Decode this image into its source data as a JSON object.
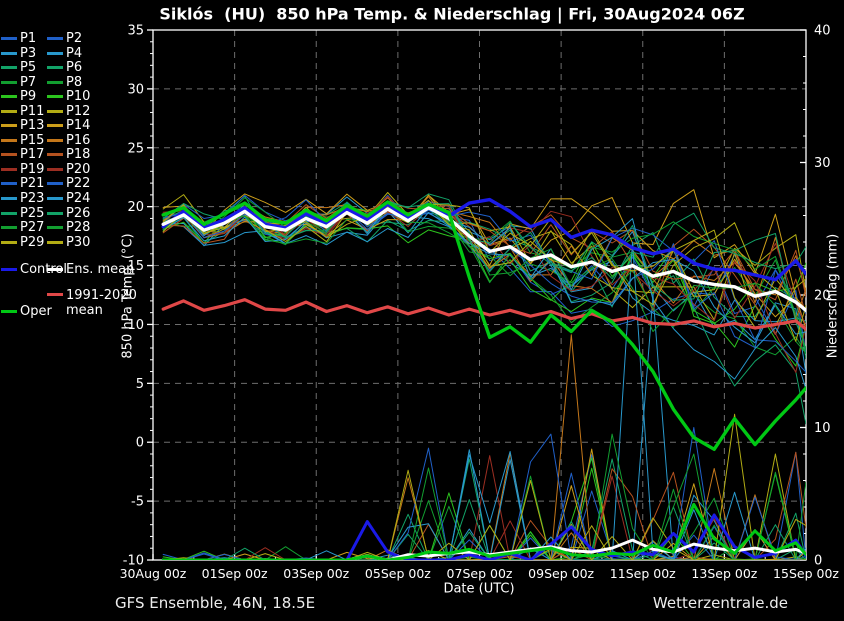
{
  "title": "Siklós  (HU)  850 hPa Temp. & Niederschlag | Fri, 30Aug2024 06Z",
  "footer": {
    "left": "GFS Ensemble, 46N, 18.5E",
    "right": "Wetterzentrale.de"
  },
  "colors": {
    "background": "#000000",
    "frame": "#ffffff",
    "grid": "#6e6e6e",
    "text": "#ffffff",
    "control": "#1a1ae8",
    "ens_mean": "#ffffff",
    "oper": "#00c814",
    "climate_mean": "#e04848"
  },
  "legend": {
    "members": [
      {
        "label": "P1",
        "color": "#2060c8"
      },
      {
        "label": "P2",
        "color": "#2060c8"
      },
      {
        "label": "P3",
        "color": "#2898cc"
      },
      {
        "label": "P4",
        "color": "#2898cc"
      },
      {
        "label": "P5",
        "color": "#12a368"
      },
      {
        "label": "P6",
        "color": "#12a368"
      },
      {
        "label": "P7",
        "color": "#129e30"
      },
      {
        "label": "P8",
        "color": "#129e30"
      },
      {
        "label": "P9",
        "color": "#2cc41e"
      },
      {
        "label": "P10",
        "color": "#2cc41e"
      },
      {
        "label": "P11",
        "color": "#b2ac14"
      },
      {
        "label": "P12",
        "color": "#b2ac14"
      },
      {
        "label": "P13",
        "color": "#cc9e1a"
      },
      {
        "label": "P14",
        "color": "#cc9e1a"
      },
      {
        "label": "P15",
        "color": "#c4771a"
      },
      {
        "label": "P16",
        "color": "#c4771a"
      },
      {
        "label": "P17",
        "color": "#b5521f"
      },
      {
        "label": "P18",
        "color": "#b5521f"
      },
      {
        "label": "P19",
        "color": "#9c2e22"
      },
      {
        "label": "P20",
        "color": "#9c2e22"
      },
      {
        "label": "P21",
        "color": "#2060c8"
      },
      {
        "label": "P22",
        "color": "#2060c8"
      },
      {
        "label": "P23",
        "color": "#2898cc"
      },
      {
        "label": "P24",
        "color": "#2898cc"
      },
      {
        "label": "P25",
        "color": "#12a368"
      },
      {
        "label": "P26",
        "color": "#12a368"
      },
      {
        "label": "P27",
        "color": "#129e30"
      },
      {
        "label": "P28",
        "color": "#129e30"
      },
      {
        "label": "P29",
        "color": "#b2ac14"
      },
      {
        "label": "P30",
        "color": "#b2ac14"
      }
    ],
    "extras": [
      {
        "label": "Control",
        "color": "#1a1ae8"
      },
      {
        "label": "Ens. mean",
        "color": "#ffffff"
      },
      {
        "label": "1991-2020 mean",
        "color": "#e04848"
      },
      {
        "label": "Oper",
        "color": "#00c814"
      }
    ]
  },
  "chart_data": {
    "type": "line",
    "title": "Siklós  (HU)  850 hPa Temp. & Niederschlag | Fri, 30Aug2024 06Z",
    "xlabel": "Date (UTC)",
    "ylabel_left": "850 hPa Temp. (°C)",
    "ylabel_right": "Niederschlag (mm)",
    "x_tick_labels": [
      "30Aug 00z",
      "01Sep 00z",
      "03Sep 00z",
      "05Sep 00z",
      "07Sep 00z",
      "09Sep 00z",
      "11Sep 00z",
      "13Sep 00z",
      "15Sep 00z"
    ],
    "x_range_hours": [
      0,
      384
    ],
    "x_major_step_hours": 48,
    "x_minor_step_hours": 24,
    "ylim_left": [
      -10,
      35
    ],
    "yticks_left": [
      35,
      30,
      25,
      20,
      15,
      10,
      5,
      0,
      -5,
      -10
    ],
    "y_minor_step_left": 1,
    "ylim_right": [
      0,
      40
    ],
    "yticks_right": [
      40,
      30,
      20,
      10,
      0
    ],
    "y_minor_step_right": 2,
    "grid": {
      "style": "dashed",
      "color": "#6e6e6e",
      "x_every_hours": 48,
      "y_every_degC": 5
    },
    "hours": [
      6,
      18,
      30,
      42,
      54,
      66,
      78,
      90,
      102,
      114,
      126,
      138,
      150,
      162,
      174,
      186,
      198,
      210,
      222,
      234,
      246,
      258,
      270,
      282,
      294,
      306,
      318,
      330,
      342,
      354,
      366,
      378,
      384
    ],
    "series": [
      {
        "name": "Ens. mean",
        "color": "#ffffff",
        "width": 3.4,
        "temp": [
          18.5,
          19.3,
          18.0,
          18.6,
          19.6,
          18.3,
          18.0,
          19.0,
          18.3,
          19.5,
          18.6,
          19.8,
          18.8,
          19.9,
          19.0,
          17.5,
          16.2,
          16.6,
          15.5,
          15.9,
          14.9,
          15.3,
          14.5,
          15.0,
          14.1,
          14.5,
          13.7,
          13.4,
          13.2,
          12.4,
          12.8,
          11.9,
          11.2
        ],
        "precip": [
          0,
          0,
          0,
          0,
          0,
          0,
          0,
          0,
          0,
          0,
          0.3,
          0,
          0.4,
          0.3,
          0.5,
          0.6,
          0.4,
          0.6,
          0.8,
          1.0,
          0.7,
          0.6,
          0.9,
          1.5,
          0.8,
          0.6,
          1.2,
          0.9,
          0.7,
          0.9,
          0.6,
          0.8,
          0.5
        ]
      },
      {
        "name": "Control",
        "color": "#1a1ae8",
        "width": 3.4,
        "temp": [
          18.3,
          19.6,
          18.2,
          18.9,
          19.9,
          18.5,
          18.2,
          19.4,
          18.5,
          19.8,
          18.9,
          20.2,
          19.0,
          20.1,
          19.2,
          20.3,
          20.6,
          19.6,
          18.3,
          18.9,
          17.4,
          18.0,
          17.6,
          16.5,
          16.0,
          16.4,
          15.2,
          14.7,
          14.6,
          14.2,
          13.8,
          15.4,
          14.3
        ],
        "precip": [
          0,
          0,
          0,
          0,
          0,
          0,
          0,
          0,
          0,
          0,
          2.9,
          0.6,
          0,
          0,
          0,
          0.4,
          0,
          0.5,
          0,
          1.2,
          2.5,
          0.8,
          0.3,
          0.6,
          0.4,
          2.0,
          0.6,
          3.4,
          1.0,
          0.2,
          0.5,
          1.5,
          0.3
        ]
      },
      {
        "name": "Oper",
        "color": "#00c814",
        "width": 3.4,
        "temp": [
          19.3,
          19.9,
          18.5,
          19.4,
          20.3,
          18.9,
          18.6,
          19.7,
          18.8,
          20.1,
          19.2,
          20.4,
          19.3,
          20.2,
          19.5,
          14.0,
          8.9,
          9.8,
          8.5,
          10.8,
          9.4,
          11.2,
          10.2,
          8.3,
          6.0,
          2.8,
          0.4,
          -0.6,
          2.0,
          -0.2,
          1.8,
          3.6,
          4.6
        ],
        "precip": [
          0,
          0,
          0,
          0,
          0,
          0,
          0,
          0,
          0,
          0,
          0.3,
          0,
          0.2,
          0.6,
          0.5,
          0.8,
          0.3,
          0.5,
          0.7,
          0.9,
          0.4,
          0.3,
          0.5,
          0.4,
          1.1,
          0.6,
          4.2,
          1.6,
          0.5,
          2.2,
          0.7,
          1.3,
          0.4
        ]
      },
      {
        "name": "1991-2020 mean",
        "color": "#e04848",
        "width": 3.2,
        "temp": [
          11.3,
          12.0,
          11.2,
          11.6,
          12.1,
          11.3,
          11.2,
          11.9,
          11.1,
          11.6,
          11.0,
          11.5,
          10.9,
          11.4,
          10.8,
          11.3,
          10.8,
          11.2,
          10.7,
          11.1,
          10.5,
          10.9,
          10.3,
          10.6,
          10.1,
          10.0,
          10.3,
          9.8,
          10.1,
          9.7,
          10.0,
          10.3,
          9.6
        ]
      }
    ],
    "ensemble_members": {
      "names": [
        "P1",
        "P2",
        "P3",
        "P4",
        "P5",
        "P6",
        "P7",
        "P8",
        "P9",
        "P10",
        "P11",
        "P12",
        "P13",
        "P14",
        "P15",
        "P16",
        "P17",
        "P18",
        "P19",
        "P20",
        "P21",
        "P22",
        "P23",
        "P24",
        "P25",
        "P26",
        "P27",
        "P28",
        "P29",
        "P30"
      ],
      "colors": [
        "#2060c8",
        "#2060c8",
        "#2898cc",
        "#2898cc",
        "#12a368",
        "#12a368",
        "#129e30",
        "#129e30",
        "#2cc41e",
        "#2cc41e",
        "#b2ac14",
        "#b2ac14",
        "#cc9e1a",
        "#cc9e1a",
        "#c4771a",
        "#c4771a",
        "#b5521f",
        "#b5521f",
        "#9c2e22",
        "#9c2e22",
        "#2060c8",
        "#2060c8",
        "#2898cc",
        "#2898cc",
        "#12a368",
        "#12a368",
        "#129e30",
        "#129e30",
        "#b2ac14",
        "#b2ac14"
      ],
      "plume_center_temp": [
        18.5,
        19.3,
        18.0,
        18.6,
        19.6,
        18.3,
        18.0,
        19.0,
        18.3,
        19.5,
        18.6,
        19.8,
        18.8,
        19.9,
        19.0,
        17.5,
        16.2,
        16.6,
        15.5,
        15.9,
        14.9,
        15.3,
        14.5,
        15.0,
        14.1,
        14.5,
        13.7,
        13.4,
        13.2,
        12.4,
        12.8,
        11.9,
        11.2
      ],
      "plume_spread_temp": [
        1.3,
        1.3,
        1.3,
        1.3,
        1.3,
        1.3,
        1.3,
        1.3,
        1.3,
        1.3,
        1.3,
        1.3,
        1.3,
        1.3,
        1.4,
        2.2,
        2.6,
        2.9,
        3.1,
        3.3,
        3.5,
        3.7,
        3.9,
        4.1,
        4.3,
        4.5,
        4.7,
        4.9,
        5.1,
        5.3,
        5.5,
        5.6,
        5.7
      ],
      "late_cold_outliers": [
        {
          "member": "P6",
          "degC_per_hour_after_288h": 0.05
        },
        {
          "member": "P24",
          "degC_per_hour_after_288h": 0.08
        }
      ],
      "notable_precip_spikes": [
        {
          "member": "P16",
          "hour": 246,
          "mm": 17
        },
        {
          "member": "P24",
          "hour": 282,
          "mm": 24
        },
        {
          "member": "P4",
          "hour": 294,
          "mm": 20
        },
        {
          "member": "P22",
          "hour": 234,
          "mm": 9.5
        },
        {
          "member": "P22",
          "hour": 318,
          "mm": 10
        },
        {
          "member": "P28",
          "hour": 270,
          "mm": 9.5
        },
        {
          "member": "P30",
          "hour": 342,
          "mm": 11
        },
        {
          "member": "P12",
          "hour": 366,
          "mm": 8
        }
      ]
    }
  }
}
